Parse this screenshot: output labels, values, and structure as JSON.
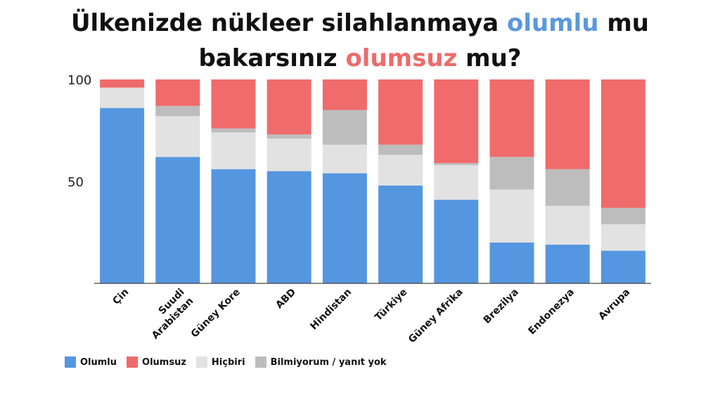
{
  "title": {
    "part1": "Ülkenizde nükleer silahlanmaya ",
    "positive_word": "olumlu",
    "part2": " mu",
    "part3": "bakarsınız ",
    "negative_word": "olumsuz",
    "part4": " mu?"
  },
  "colors": {
    "Olumlu": "#5596e0",
    "Olumsuz": "#f06b6b",
    "Hiçbiri": "#e2e2e2",
    "Bilmiyorum / yanıt yok": "#bdbdbd",
    "title_positive": "#5b98dc",
    "title_negative": "#ee6b6b"
  },
  "chart_data": {
    "type": "bar",
    "stacked": true,
    "categories": [
      "Çin",
      "Suudi Arabistan",
      "Güney Kore",
      "ABD",
      "Hindistan",
      "Türkiye",
      "Güney Afrika",
      "Brezilya",
      "Endonezya",
      "Avrupa"
    ],
    "category_lines": [
      [
        "Çin"
      ],
      [
        "Suudi",
        "Arabistan"
      ],
      [
        "Güney Kore"
      ],
      [
        "ABD"
      ],
      [
        "Hindistan"
      ],
      [
        "Türkiye"
      ],
      [
        "Güney Afrika"
      ],
      [
        "Brezilya"
      ],
      [
        "Endonezya"
      ],
      [
        "Avrupa"
      ]
    ],
    "series": [
      {
        "name": "Olumlu",
        "values": [
          86,
          62,
          56,
          55,
          54,
          48,
          41,
          20,
          19,
          16
        ]
      },
      {
        "name": "Hiçbiri",
        "values": [
          10,
          20,
          18,
          16,
          14,
          15,
          17,
          26,
          19,
          13
        ]
      },
      {
        "name": "Bilmiyorum / yanıt yok",
        "values": [
          0,
          5,
          2,
          2,
          17,
          5,
          1,
          16,
          18,
          8
        ]
      },
      {
        "name": "Olumsuz",
        "values": [
          4,
          13,
          24,
          27,
          15,
          32,
          41,
          38,
          44,
          63
        ]
      }
    ],
    "legend_order": [
      "Olumlu",
      "Olumsuz",
      "Hiçbiri",
      "Bilmiyorum / yanıt yok"
    ],
    "yticks": [
      50,
      100
    ],
    "ylim": [
      0,
      100
    ],
    "xlabel": "",
    "ylabel": "",
    "legend_position": "bottom-left",
    "grid": false
  }
}
